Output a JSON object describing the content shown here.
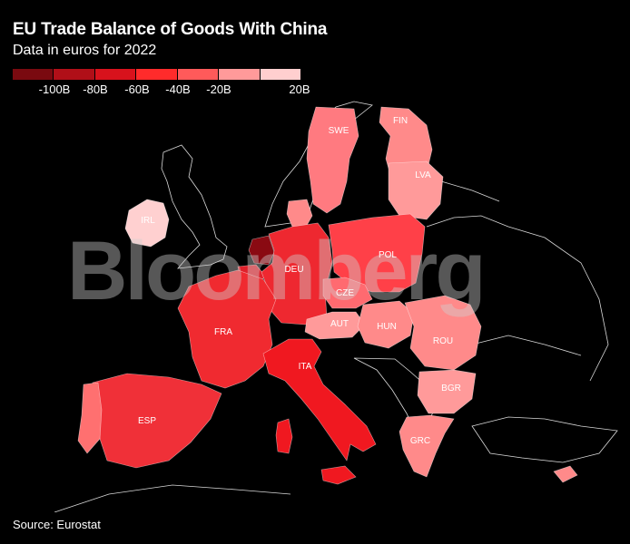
{
  "title": "EU Trade Balance of Goods With China",
  "subtitle": "Data in euros for 2022",
  "legend": {
    "swatch_colors": [
      "#7a0a10",
      "#b00f18",
      "#d8121c",
      "#ff2b2b",
      "#ff5a5a",
      "#ff9a9a",
      "#ffcfcf"
    ],
    "labels": [
      "-100B",
      "-80B",
      "-60B",
      "-40B",
      "-20B",
      "20B"
    ]
  },
  "countries": {
    "SWE": {
      "label": "SWE",
      "color": "#ff7a80"
    },
    "FIN": {
      "label": "FIN",
      "color": "#ff8a8a"
    },
    "LVA": {
      "label": "LVA",
      "color": "#ff9a9a"
    },
    "IRL": {
      "label": "IRL",
      "color": "#ffd0d0"
    },
    "DEU": {
      "label": "DEU",
      "color": "#ee2830"
    },
    "POL": {
      "label": "POL",
      "color": "#ff4048"
    },
    "CZE": {
      "label": "CZE",
      "color": "#ff6a70"
    },
    "AUT": {
      "label": "AUT",
      "color": "#ff9a9a"
    },
    "HUN": {
      "label": "HUN",
      "color": "#ff8a8a"
    },
    "ROU": {
      "label": "ROU",
      "color": "#ff8a8a"
    },
    "BGR": {
      "label": "BGR",
      "color": "#ff9a9a"
    },
    "GRC": {
      "label": "GRC",
      "color": "#ff8a8a"
    },
    "FRA": {
      "label": "FRA",
      "color": "#f02a30"
    },
    "ESP": {
      "label": "ESP",
      "color": "#f03038"
    },
    "ITA": {
      "label": "ITA",
      "color": "#f01820"
    },
    "NLD": {
      "label": "",
      "color": "#8a0a12"
    },
    "BEL": {
      "label": "",
      "color": "#e0202a"
    },
    "PRT": {
      "label": "",
      "color": "#ff7070"
    },
    "DNK": {
      "label": "",
      "color": "#ff8a8a"
    }
  },
  "watermark": "Bloomberg",
  "source": "Source: Eurostat"
}
